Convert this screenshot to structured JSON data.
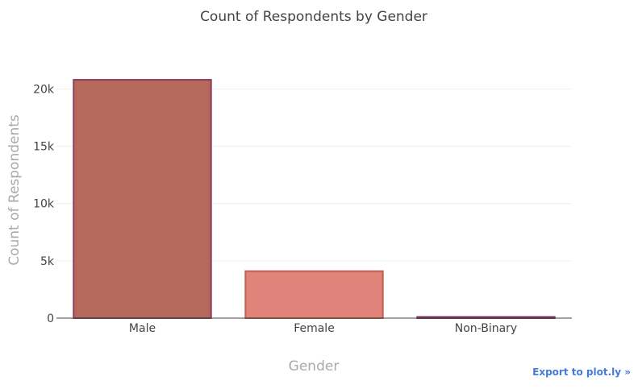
{
  "chart_data": {
    "type": "bar",
    "title": "Count of Respondents by Gender",
    "xlabel": "Gender",
    "ylabel": "Count of Respondents",
    "categories": [
      "Male",
      "Female",
      "Non-Binary"
    ],
    "values": [
      20800,
      4100,
      100
    ],
    "ylim": [
      0,
      22000
    ],
    "yticks": [
      0,
      5000,
      10000,
      15000,
      20000
    ],
    "ytick_labels": [
      "0",
      "5k",
      "10k",
      "15k",
      "20k"
    ],
    "grid": true,
    "legend": "none",
    "bar_colors": [
      "#b5695a",
      "#e0847b",
      "#8e3c6a"
    ],
    "bar_outline_colors": [
      "#8e3c5e",
      "#c0604f",
      "#7a2e5a"
    ]
  },
  "export_link": "Export to plot.ly »"
}
